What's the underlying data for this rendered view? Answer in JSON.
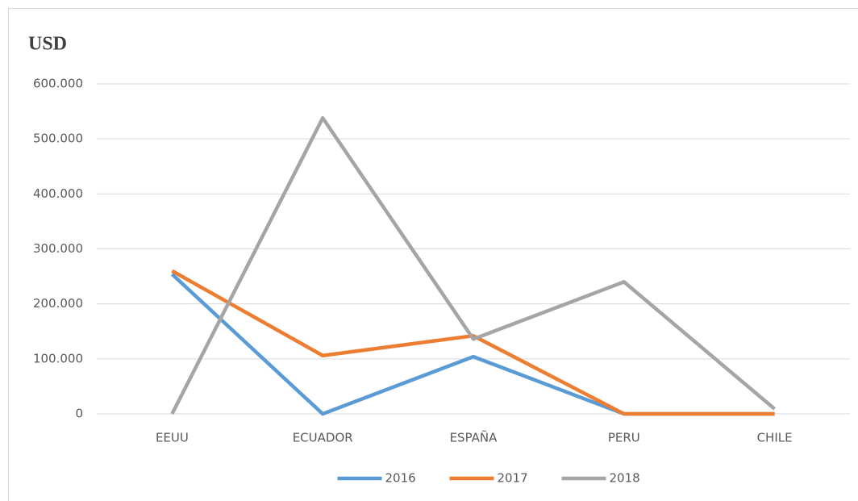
{
  "chart_data": {
    "type": "line",
    "ylabel": "USD",
    "categories": [
      "EEUU",
      "ECUADOR",
      "ESPAÑA",
      "PERU",
      "CHILE"
    ],
    "series": [
      {
        "name": "2016",
        "color": "#5b9bd5",
        "values": [
          254000,
          0,
          104000,
          0,
          0
        ]
      },
      {
        "name": "2017",
        "color": "#ed7d31",
        "values": [
          260000,
          106000,
          142000,
          0,
          0
        ]
      },
      {
        "name": "2018",
        "color": "#a5a5a5",
        "values": [
          0,
          538000,
          136000,
          240000,
          9000
        ]
      }
    ],
    "ylim": [
      0,
      600000
    ],
    "yticks": [
      0,
      {
        "value": 100000,
        "label": "100.000"
      },
      {
        "value": 200000,
        "label": "200.000"
      },
      {
        "value": 300000,
        "label": "300.000"
      },
      {
        "value": 400000,
        "label": "400.000"
      },
      {
        "value": 500000,
        "label": "500.000"
      },
      {
        "value": 600000,
        "label": "600.000"
      }
    ],
    "grid": true,
    "legend": "bottom"
  }
}
